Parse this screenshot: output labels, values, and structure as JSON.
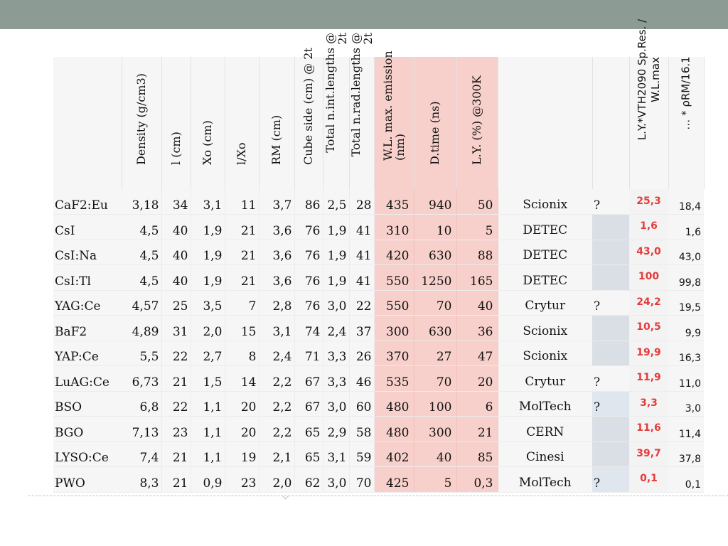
{
  "headers": {
    "name": "",
    "density": "Density (g/cm3)",
    "l": "l (cm)",
    "x0": "Xo (cm)",
    "l_x0": "l/Xo",
    "rm": "RM (cm)",
    "cube": "Cube side (cm) @ 2t",
    "int_lengths": "Total n.int.lengths @ 2t",
    "rad_lengths": "Total n.rad.lengths @ 2t",
    "wl": "W.L. max. emission (nm)",
    "dtime": "D.time (ns)",
    "ly": "L.Y. (%) @300K",
    "producer": "",
    "question": "",
    "ly_vth": "L.Y.*VTH2090 Sp.Res. / W.L.max",
    "rho": "… * ρRM/16.1"
  },
  "rows": [
    {
      "name": "CaF2:Eu",
      "density": "3,18",
      "l": "34",
      "x0": "3,1",
      "l_x0": "11",
      "rm": "3,7",
      "cube": "86",
      "int": "2,5",
      "rad": "28",
      "wl": "435",
      "dtime": "940",
      "ly": "50",
      "producer": "Scionix",
      "q": "?",
      "red": "25,3",
      "last": "18,4"
    },
    {
      "name": "CsI",
      "density": "4,5",
      "l": "40",
      "x0": "1,9",
      "l_x0": "21",
      "rm": "3,6",
      "cube": "76",
      "int": "1,9",
      "rad": "41",
      "wl": "310",
      "dtime": "10",
      "ly": "5",
      "producer": "DETEC",
      "q": "",
      "red": "1,6",
      "last": "1,6"
    },
    {
      "name": "CsI:Na",
      "density": "4,5",
      "l": "40",
      "x0": "1,9",
      "l_x0": "21",
      "rm": "3,6",
      "cube": "76",
      "int": "1,9",
      "rad": "41",
      "wl": "420",
      "dtime": "630",
      "ly": "88",
      "producer": "DETEC",
      "q": "",
      "red": "43,0",
      "last": "43,0"
    },
    {
      "name": "CsI:Tl",
      "density": "4,5",
      "l": "40",
      "x0": "1,9",
      "l_x0": "21",
      "rm": "3,6",
      "cube": "76",
      "int": "1,9",
      "rad": "41",
      "wl": "550",
      "dtime": "1250",
      "ly": "165",
      "producer": "DETEC",
      "q": "",
      "red": "100",
      "last": "99,8"
    },
    {
      "name": "YAG:Ce",
      "density": "4,57",
      "l": "25",
      "x0": "3,5",
      "l_x0": "7",
      "rm": "2,8",
      "cube": "76",
      "int": "3,0",
      "rad": "22",
      "wl": "550",
      "dtime": "70",
      "ly": "40",
      "producer": "Crytur",
      "q": "?",
      "red": "24,2",
      "last": "19,5"
    },
    {
      "name": "BaF2",
      "density": "4,89",
      "l": "31",
      "x0": "2,0",
      "l_x0": "15",
      "rm": "3,1",
      "cube": "74",
      "int": "2,4",
      "rad": "37",
      "wl": "300",
      "dtime": "630",
      "ly": "36",
      "producer": "Scionix",
      "q": "",
      "red": "10,5",
      "last": "9,9"
    },
    {
      "name": "YAP:Ce",
      "density": "5,5",
      "l": "22",
      "x0": "2,7",
      "l_x0": "8",
      "rm": "2,4",
      "cube": "71",
      "int": "3,3",
      "rad": "26",
      "wl": "370",
      "dtime": "27",
      "ly": "47",
      "producer": "Scionix",
      "q": "",
      "red": "19,9",
      "last": "16,3"
    },
    {
      "name": "LuAG:Ce",
      "density": "6,73",
      "l": "21",
      "x0": "1,5",
      "l_x0": "14",
      "rm": "2,2",
      "cube": "67",
      "int": "3,3",
      "rad": "46",
      "wl": "535",
      "dtime": "70",
      "ly": "20",
      "producer": "Crytur",
      "q": "?",
      "red": "11,9",
      "last": "11,0"
    },
    {
      "name": "BSO",
      "density": "6,8",
      "l": "22",
      "x0": "1,1",
      "l_x0": "20",
      "rm": "2,2",
      "cube": "67",
      "int": "3,0",
      "rad": "60",
      "wl": "480",
      "dtime": "100",
      "ly": "6",
      "producer": "MolTech",
      "q": "?",
      "red": "3,3",
      "last": "3,0"
    },
    {
      "name": "BGO",
      "density": "7,13",
      "l": "23",
      "x0": "1,1",
      "l_x0": "20",
      "rm": "2,2",
      "cube": "65",
      "int": "2,9",
      "rad": "58",
      "wl": "480",
      "dtime": "300",
      "ly": "21",
      "producer": "CERN",
      "q": "",
      "red": "11,6",
      "last": "11,4"
    },
    {
      "name": "LYSO:Ce",
      "density": "7,4",
      "l": "21",
      "x0": "1,1",
      "l_x0": "19",
      "rm": "2,1",
      "cube": "65",
      "int": "3,1",
      "rad": "59",
      "wl": "402",
      "dtime": "40",
      "ly": "85",
      "producer": "Cinesi",
      "q": "",
      "red": "39,7",
      "last": "37,8"
    },
    {
      "name": "PWO",
      "density": "8,3",
      "l": "21",
      "x0": "0,9",
      "l_x0": "23",
      "rm": "2,0",
      "cube": "62",
      "int": "3,0",
      "rad": "70",
      "wl": "425",
      "dtime": "5",
      "ly": "0,3",
      "producer": "MolTech",
      "q": "?",
      "red": "0,1",
      "last": "0,1"
    }
  ]
}
